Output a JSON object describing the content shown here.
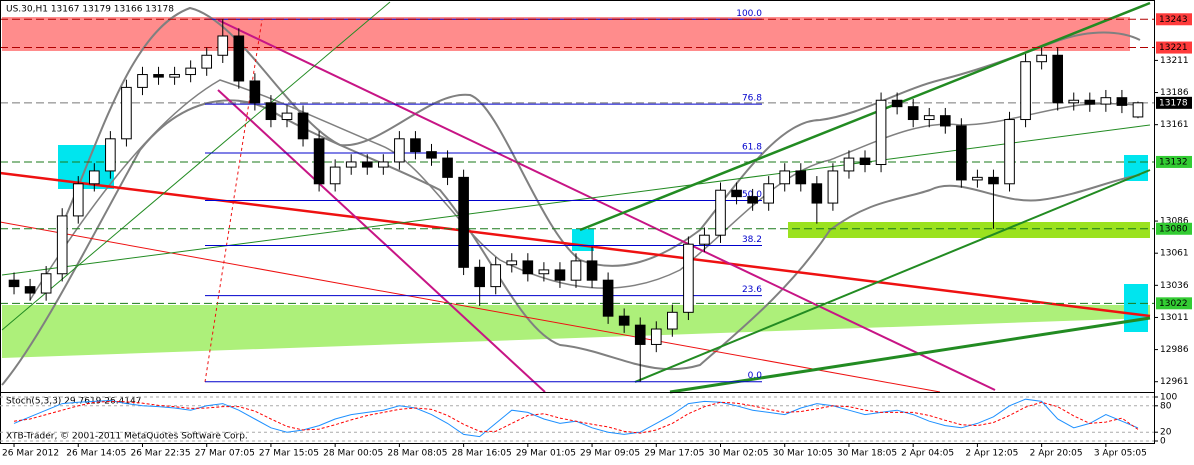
{
  "chart_data": {
    "type": "candlestick",
    "title": "US.30,H1  13167 13179 13166 13178",
    "footer": "XTB-Trader, © 2001-2011 MetaQuotes Software Corp.",
    "categories": [
      "26 Mar 2012",
      null,
      null,
      null,
      "26 Mar 14:05",
      null,
      null,
      null,
      "26 Mar 22:35",
      null,
      null,
      null,
      "27 Mar 07:05",
      null,
      null,
      null,
      "27 Mar 15:05",
      null,
      null,
      null,
      "28 Mar 00:05",
      null,
      null,
      null,
      "28 Mar 08:05",
      null,
      null,
      null,
      "28 Mar 16:05",
      null,
      null,
      null,
      "29 Mar 01:05",
      null,
      null,
      null,
      "29 Mar 09:05",
      null,
      null,
      null,
      "29 Mar 17:05",
      null,
      null,
      null,
      "30 Mar 02:05",
      null,
      null,
      null,
      "30 Mar 10:05",
      null,
      null,
      null,
      "30 Mar 18:05",
      null,
      null,
      null,
      "2 Apr 04:05",
      null,
      null,
      null,
      "2 Apr 12:05",
      null,
      null,
      null,
      "2 Apr 20:05",
      null,
      null,
      null,
      "3 Apr 05:05",
      null,
      null
    ],
    "open": [
      13040,
      13035,
      13030,
      13045,
      13090,
      13115,
      13125,
      13150,
      13190,
      13200,
      13198,
      13200,
      13205,
      13215,
      13230,
      13195,
      13178,
      13165,
      13170,
      13150,
      13115,
      13128,
      13132,
      13128,
      13132,
      13150,
      13140,
      13135,
      13120,
      13050,
      13035,
      13052,
      13055,
      13045,
      13048,
      13040,
      13055,
      13040,
      13012,
      13005,
      12990,
      13002,
      13015,
      13068,
      13075,
      13110,
      13105,
      13100,
      13115,
      13125,
      13115,
      13100,
      13125,
      13135,
      13130,
      13180,
      13175,
      13165,
      13168,
      13160,
      13118,
      13120,
      13115,
      13165,
      13210,
      13215,
      13178,
      13180,
      13177,
      13182,
      13167
    ],
    "high": [
      13046,
      13041,
      13051,
      13096,
      13121,
      13131,
      13156,
      13196,
      13206,
      13206,
      13206,
      13211,
      13221,
      13243,
      13236,
      13201,
      13184,
      13176,
      13176,
      13156,
      13134,
      13138,
      13138,
      13138,
      13156,
      13156,
      13146,
      13141,
      13126,
      13056,
      13058,
      13061,
      13061,
      13054,
      13054,
      13061,
      13066,
      13046,
      13018,
      13011,
      13008,
      13021,
      13074,
      13081,
      13116,
      13116,
      13111,
      13121,
      13131,
      13131,
      13121,
      13131,
      13141,
      13141,
      13186,
      13186,
      13181,
      13174,
      13174,
      13166,
      13126,
      13126,
      13171,
      13216,
      13221,
      13221,
      13186,
      13186,
      13188,
      13188,
      13179
    ],
    "low": [
      13029,
      13024,
      13024,
      13039,
      13084,
      13109,
      13119,
      13144,
      13184,
      13192,
      13192,
      13194,
      13199,
      13209,
      13189,
      13172,
      13159,
      13159,
      13144,
      13109,
      13109,
      13122,
      13122,
      13122,
      13126,
      13134,
      13129,
      13114,
      13044,
      13020,
      13029,
      13046,
      13039,
      13039,
      13034,
      13034,
      13034,
      13006,
      12999,
      12961,
      12984,
      12996,
      13009,
      13062,
      13069,
      13099,
      13094,
      13094,
      13109,
      13109,
      13084,
      13094,
      13119,
      13124,
      13124,
      13169,
      13159,
      13159,
      13154,
      13112,
      13112,
      13080,
      13109,
      13159,
      13204,
      13172,
      13172,
      13171,
      13171,
      13170,
      13166
    ],
    "close": [
      13035,
      13030,
      13045,
      13090,
      13115,
      13125,
      13150,
      13190,
      13200,
      13198,
      13200,
      13205,
      13215,
      13230,
      13195,
      13178,
      13165,
      13170,
      13150,
      13115,
      13128,
      13132,
      13128,
      13132,
      13150,
      13140,
      13135,
      13120,
      13050,
      13035,
      13052,
      13055,
      13045,
      13048,
      13040,
      13055,
      13040,
      13012,
      13005,
      12990,
      13002,
      13015,
      13068,
      13075,
      13110,
      13105,
      13100,
      13115,
      13125,
      13115,
      13100,
      13125,
      13135,
      13130,
      13180,
      13175,
      13165,
      13168,
      13160,
      13118,
      13120,
      13115,
      13165,
      13210,
      13215,
      13178,
      13180,
      13177,
      13182,
      13176,
      13178
    ],
    "ylim": [
      12953,
      13258
    ],
    "yticks": [
      13211,
      13186,
      13161,
      13086,
      13061,
      13036,
      13011,
      12986,
      12961
    ],
    "price_labels": [
      13243,
      13221,
      13178,
      13132,
      13080,
      13022
    ],
    "price_label_colors": [
      "#ff3b3b",
      "#ff3b3b",
      "#000000",
      "#33cc33",
      "#33cc33",
      "#33cc33"
    ],
    "fibonacci": {
      "levels": [
        "100.0",
        "76.8",
        "61.8",
        "50.0",
        "38.2",
        "23.6",
        "0.0"
      ],
      "prices": [
        13243,
        13177,
        13139,
        13102,
        13067,
        13028,
        12961
      ],
      "color": "#0000cc"
    },
    "stochastic": {
      "title": "Stoch(5,3,3) 29.7619 26.4147",
      "ylim": [
        0,
        100
      ],
      "yticks": [
        0,
        20,
        80,
        100
      ],
      "series": [
        {
          "color": "#1e90ff",
          "values": [
            40,
            55,
            70,
            85,
            88,
            90,
            92,
            85,
            80,
            78,
            75,
            70,
            80,
            85,
            70,
            50,
            30,
            20,
            25,
            35,
            50,
            60,
            65,
            70,
            80,
            75,
            60,
            40,
            15,
            10,
            40,
            70,
            65,
            50,
            40,
            45,
            30,
            20,
            15,
            20,
            40,
            60,
            85,
            90,
            88,
            80,
            70,
            65,
            60,
            75,
            85,
            80,
            70,
            60,
            65,
            70,
            60,
            45,
            35,
            30,
            40,
            55,
            80,
            95,
            90,
            50,
            30,
            40,
            60,
            45,
            29.76
          ]
        },
        {
          "color": "#ff0000",
          "values": [
            45,
            50,
            60,
            70,
            80,
            88,
            90,
            89,
            86,
            81,
            78,
            74,
            75,
            78,
            78,
            68,
            50,
            33,
            25,
            27,
            37,
            48,
            58,
            65,
            72,
            75,
            72,
            58,
            38,
            22,
            22,
            40,
            58,
            62,
            52,
            45,
            38,
            32,
            22,
            18,
            25,
            40,
            62,
            78,
            88,
            86,
            80,
            72,
            65,
            67,
            73,
            80,
            78,
            70,
            65,
            65,
            65,
            58,
            47,
            37,
            35,
            42,
            58,
            77,
            88,
            78,
            57,
            40,
            43,
            52,
            26.41
          ]
        }
      ]
    }
  }
}
